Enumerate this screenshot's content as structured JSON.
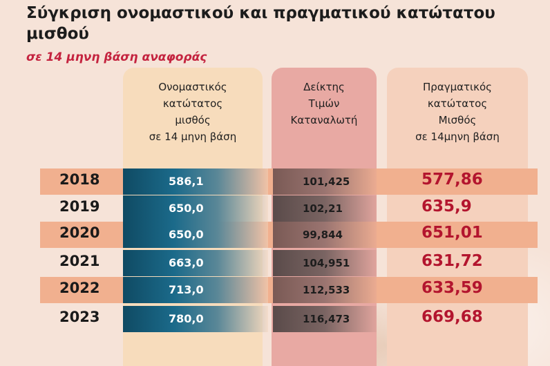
{
  "title": "Σύγκριση ονομαστικού και πραγματικού κατώτατου μισθού",
  "subtitle": "σε 14 μηνη βάση αναφοράς",
  "headers": {
    "nominal": "Ονομαστικός\nκατώτατος\nμισθός\nσε 14 μηνη βάση",
    "cpi": "Δείκτης\nΤιμών\nΚαταναλωτή",
    "real": "Πραγματικός\nκατώτατος\nΜισθός\nσε 14μηνη βάση"
  },
  "rows": [
    {
      "year": "2018",
      "nominal": "586,1",
      "cpi": "101,425",
      "real": "577,86"
    },
    {
      "year": "2019",
      "nominal": "650,0",
      "cpi": "102,21",
      "real": "635,9"
    },
    {
      "year": "2020",
      "nominal": "650,0",
      "cpi": "99,844",
      "real": "651,01"
    },
    {
      "year": "2021",
      "nominal": "663,0",
      "cpi": "104,951",
      "real": "631,72"
    },
    {
      "year": "2022",
      "nominal": "713,0",
      "cpi": "112,533",
      "real": "633,59"
    },
    {
      "year": "2023",
      "nominal": "780,0",
      "cpi": "116,473",
      "real": "669,68"
    }
  ],
  "chart_data": {
    "type": "table",
    "title": "Σύγκριση ονομαστικού και πραγματικού κατώτατου μισθού",
    "subtitle": "σε 14 μηνη βάση αναφοράς",
    "columns": [
      "Ονομαστικός κατώτατος μισθός σε 14 μηνη βάση",
      "Δείκτης Τιμών Καταναλωτή",
      "Πραγματικός κατώτατος Μισθός σε 14μηνη βάση"
    ],
    "categories": [
      "2018",
      "2019",
      "2020",
      "2021",
      "2022",
      "2023"
    ],
    "series": [
      {
        "name": "Ονομαστικός κατώτατος μισθός σε 14 μηνη βάση",
        "values": [
          586.1,
          650.0,
          650.0,
          663.0,
          713.0,
          780.0
        ]
      },
      {
        "name": "Δείκτης Τιμών Καταναλωτή",
        "values": [
          101.425,
          102.21,
          99.844,
          104.951,
          112.533,
          116.473
        ]
      },
      {
        "name": "Πραγματικός κατώτατος Μισθός σε 14μηνη βάση",
        "values": [
          577.86,
          635.9,
          651.01,
          631.72,
          633.59,
          669.68
        ]
      }
    ]
  },
  "colors": {
    "background": "#f6e3d8",
    "accent_red": "#b3152e",
    "subtitle_red": "#c4233f",
    "band": "#f1b08f",
    "nominal_dark": "#0f4a63"
  }
}
